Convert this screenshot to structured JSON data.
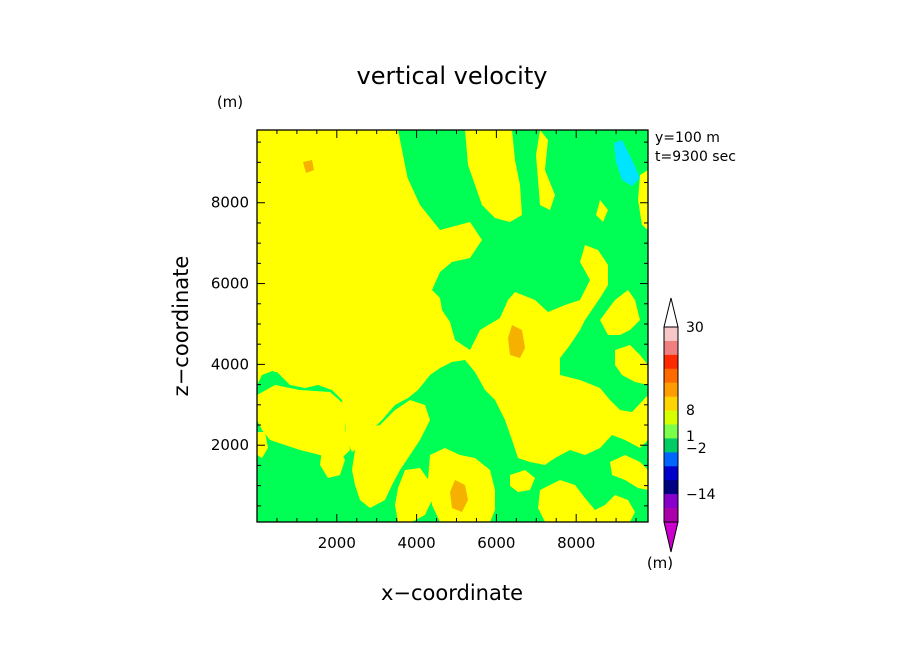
{
  "chart_data": {
    "type": "contour",
    "title": "vertical velocity",
    "xlabel": "x−coordinate",
    "ylabel": "z−coordinate",
    "yunit": "(m)",
    "xlim": [
      0,
      9800
    ],
    "ylim": [
      100,
      9800
    ],
    "xticks": [
      2000,
      4000,
      6000,
      8000
    ],
    "yticks": [
      2000,
      4000,
      6000,
      8000
    ],
    "xticklabels": [
      "2000",
      "4000",
      "6000",
      "8000"
    ],
    "yticklabels": [
      "2000",
      "4000",
      "6000",
      "8000"
    ],
    "annotation": [
      "y=100 m",
      "t=9300 sec"
    ],
    "colorbar": {
      "unit": "(m)",
      "labels": [
        {
          "text": "30",
          "value": 30
        },
        {
          "text": "8",
          "value": 8
        },
        {
          "text": "1",
          "value": 1
        },
        {
          "text": "−2",
          "value": -2
        },
        {
          "text": "−14",
          "value": -14
        }
      ],
      "colors_top_to_bottom": [
        "#ffffff",
        "#f7c6c6",
        "#f08080",
        "#ff2a00",
        "#ff6a00",
        "#ff9c00",
        "#ffd400",
        "#d6ff00",
        "#7cff4a",
        "#00cc66",
        "#0066ff",
        "#0000cc",
        "#000080",
        "#8800cc",
        "#aa00aa",
        "#cc00cc"
      ]
    },
    "field_colors": {
      "background": "#00ff55",
      "yellow": "#ffff00",
      "orange": "#f5b000",
      "cyan": "#00e5ff"
    }
  }
}
